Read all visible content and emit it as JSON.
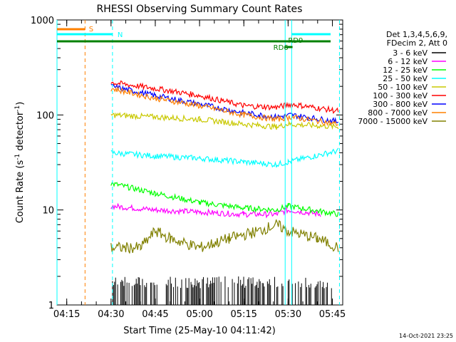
{
  "chart_data": {
    "type": "line",
    "title": "RHESSI Observing Summary Count Rates",
    "xlabel": "Start Time (25-May-10 04:11:42)",
    "ylabel_main": "Count Rate (s",
    "ylabel_sup1": "-1",
    "ylabel_mid": " detector",
    "ylabel_sup2": "-1",
    "ylabel_end": ")",
    "yscale": "log",
    "ylim": [
      1,
      1000
    ],
    "xlim_minutes": [
      251.7,
      348.5
    ],
    "x_ticks": [
      {
        "minute": 255,
        "label": "04:15"
      },
      {
        "minute": 270,
        "label": "04:30"
      },
      {
        "minute": 285,
        "label": "04:45"
      },
      {
        "minute": 300,
        "label": "05:00"
      },
      {
        "minute": 315,
        "label": "05:15"
      },
      {
        "minute": 330,
        "label": "05:30"
      },
      {
        "minute": 345,
        "label": "05:45"
      }
    ],
    "y_ticks": [
      {
        "value": 1,
        "label": "1"
      },
      {
        "value": 10,
        "label": "10"
      },
      {
        "value": 100,
        "label": "100"
      },
      {
        "value": 1000,
        "label": "1000"
      }
    ],
    "legend_header": [
      "Det 1,3,4,5,6,9,",
      "FDecim 2, Att 0"
    ],
    "series": [
      {
        "name": "3 - 6 keV",
        "color": "#000000",
        "values_note": "sparse",
        "segments": [
          [
            270.5,
            1.8
          ],
          [
            280,
            1.6
          ],
          [
            292,
            1.5
          ],
          [
            302,
            1.7
          ],
          [
            326,
            1.8
          ]
        ]
      },
      {
        "name": "6 - 12 keV",
        "color": "#ff00ff",
        "segments": [
          [
            270,
            11
          ],
          [
            285,
            10
          ],
          [
            300,
            9.5
          ],
          [
            315,
            9
          ],
          [
            326,
            9
          ],
          [
            330,
            10
          ],
          [
            341,
            9
          ]
        ]
      },
      {
        "name": "12 - 25 keV",
        "color": "#00ff00",
        "segments": [
          [
            270,
            19
          ],
          [
            285,
            15
          ],
          [
            300,
            12
          ],
          [
            315,
            10.5
          ],
          [
            326,
            10
          ],
          [
            330,
            11
          ],
          [
            347,
            9
          ]
        ]
      },
      {
        "name": "25 - 50 keV",
        "color": "#00ffff",
        "segments": [
          [
            270,
            40
          ],
          [
            285,
            37
          ],
          [
            300,
            35
          ],
          [
            315,
            32
          ],
          [
            326,
            30
          ],
          [
            330,
            32
          ],
          [
            347,
            42
          ]
        ]
      },
      {
        "name": "50 - 100 keV",
        "color": "#c8c800",
        "segments": [
          [
            270,
            100
          ],
          [
            285,
            95
          ],
          [
            300,
            90
          ],
          [
            315,
            80
          ],
          [
            326,
            75
          ],
          [
            330,
            80
          ],
          [
            347,
            75
          ]
        ]
      },
      {
        "name": "100 - 300 keV",
        "color": "#ff0000",
        "segments": [
          [
            270,
            220
          ],
          [
            285,
            190
          ],
          [
            300,
            160
          ],
          [
            315,
            125
          ],
          [
            326,
            120
          ],
          [
            331,
            130
          ],
          [
            347,
            110
          ]
        ]
      },
      {
        "name": "300 - 800 keV",
        "color": "#0000ff",
        "segments": [
          [
            270,
            200
          ],
          [
            285,
            160
          ],
          [
            300,
            130
          ],
          [
            315,
            105
          ],
          [
            326,
            95
          ],
          [
            331,
            100
          ],
          [
            347,
            85
          ]
        ]
      },
      {
        "name": "800 - 7000 keV",
        "color": "#ff8000",
        "segments": [
          [
            270,
            190
          ],
          [
            285,
            150
          ],
          [
            300,
            125
          ],
          [
            315,
            100
          ],
          [
            326,
            90
          ],
          [
            331,
            95
          ],
          [
            347,
            80
          ]
        ]
      },
      {
        "name": "7000 - 15000 keV",
        "color": "#808000",
        "segments": [
          [
            270,
            4
          ],
          [
            280,
            4
          ],
          [
            285,
            6
          ],
          [
            290,
            5
          ],
          [
            300,
            4
          ],
          [
            310,
            5
          ],
          [
            320,
            6
          ],
          [
            326,
            7
          ],
          [
            330,
            6
          ],
          [
            340,
            5
          ],
          [
            347,
            4
          ]
        ]
      }
    ],
    "flags": [
      {
        "label": "S",
        "color": "#ff8000",
        "y_top": 38
      },
      {
        "label": "N",
        "color": "#00ffff",
        "y_top": 46
      },
      {
        "label": "RD9",
        "color": "#008000",
        "y_top": 57
      },
      {
        "label": "RD6",
        "color": "#008000",
        "y_top": 66
      }
    ]
  },
  "timestamp": "14-Oct-2021 23:25"
}
